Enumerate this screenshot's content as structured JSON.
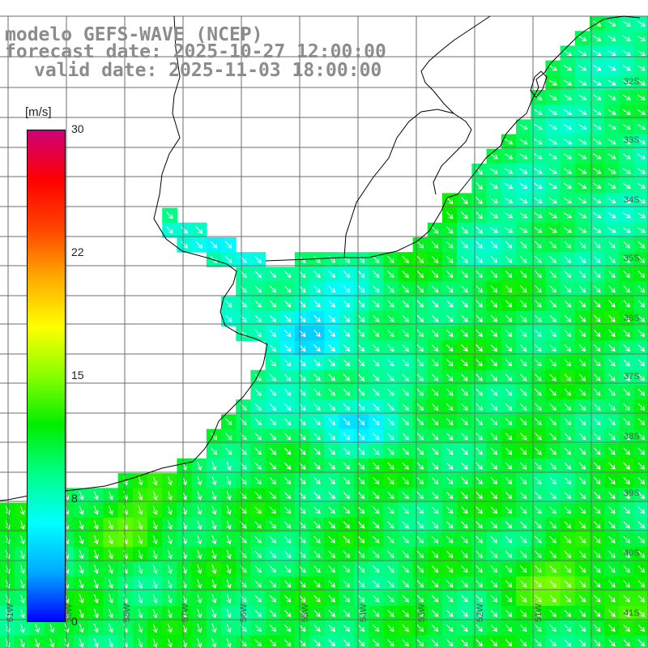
{
  "title": {
    "line1": "modelo GEFS-WAVE (NCEP)",
    "line2": "forecast date: 2025-10-27 12:00:00",
    "line3": "valid date: 2025-11-03 18:00:00"
  },
  "colorbar": {
    "unit": "[m/s]",
    "ticks": [
      "30",
      "22",
      "15",
      "8",
      "0"
    ],
    "range": [
      0,
      30
    ],
    "stops": [
      "#0000ff",
      "#00aaff",
      "#00ffff",
      "#00ff88",
      "#00ee00",
      "#88ff00",
      "#ffff00",
      "#ffaa00",
      "#ff4400",
      "#ff0000",
      "#cc0077"
    ]
  },
  "map": {
    "lon_labels": [
      "61W",
      "59W",
      "58W",
      "57W",
      "56W",
      "55W",
      "54W",
      "53W",
      "52W",
      "51W"
    ],
    "lat_labels": [
      "32S",
      "33S",
      "34S",
      "35S",
      "36S",
      "37S",
      "38S",
      "39S",
      "40S",
      "41S"
    ],
    "colors": {
      "land": "#ffffff",
      "coast": "#000000",
      "grid": "#6e6e6e",
      "arrow": "#ffffff"
    }
  }
}
